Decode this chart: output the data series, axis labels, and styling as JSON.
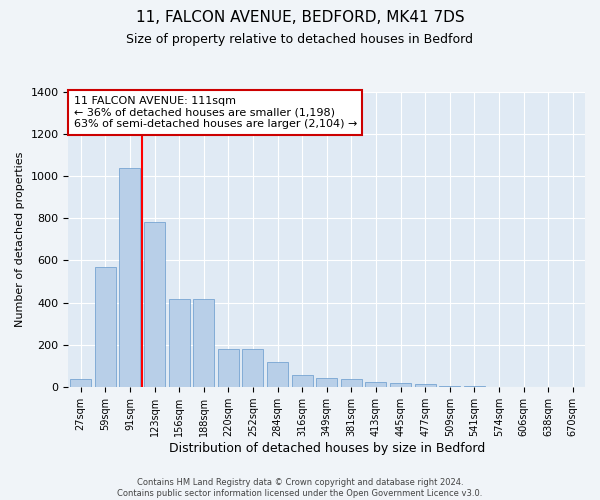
{
  "title1": "11, FALCON AVENUE, BEDFORD, MK41 7DS",
  "title2": "Size of property relative to detached houses in Bedford",
  "xlabel": "Distribution of detached houses by size in Bedford",
  "ylabel": "Number of detached properties",
  "annotation_line1": "11 FALCON AVENUE: 111sqm",
  "annotation_line2": "← 36% of detached houses are smaller (1,198)",
  "annotation_line3": "63% of semi-detached houses are larger (2,104) →",
  "footer1": "Contains HM Land Registry data © Crown copyright and database right 2024.",
  "footer2": "Contains public sector information licensed under the Open Government Licence v3.0.",
  "bar_labels": [
    "27sqm",
    "59sqm",
    "91sqm",
    "123sqm",
    "156sqm",
    "188sqm",
    "220sqm",
    "252sqm",
    "284sqm",
    "316sqm",
    "349sqm",
    "381sqm",
    "413sqm",
    "445sqm",
    "477sqm",
    "509sqm",
    "541sqm",
    "574sqm",
    "606sqm",
    "638sqm",
    "670sqm"
  ],
  "bar_values": [
    40,
    570,
    1040,
    780,
    420,
    420,
    180,
    180,
    120,
    60,
    45,
    40,
    25,
    20,
    15,
    8,
    4,
    0,
    0,
    0,
    0
  ],
  "bar_color": "#b8cfe8",
  "bar_edgecolor": "#6699cc",
  "red_line_index": 2.5,
  "ylim": [
    0,
    1400
  ],
  "yticks": [
    0,
    200,
    400,
    600,
    800,
    1000,
    1200,
    1400
  ],
  "bg_color": "#f0f4f8",
  "plot_bg_color": "#e0eaf4",
  "title1_fontsize": 11,
  "title2_fontsize": 9,
  "ylabel_fontsize": 8,
  "xlabel_fontsize": 9,
  "annotation_fontsize": 8,
  "annotation_box_color": "#ffffff",
  "annotation_box_edgecolor": "#cc0000",
  "footer_fontsize": 6,
  "tick_fontsize": 7,
  "ytick_fontsize": 8
}
